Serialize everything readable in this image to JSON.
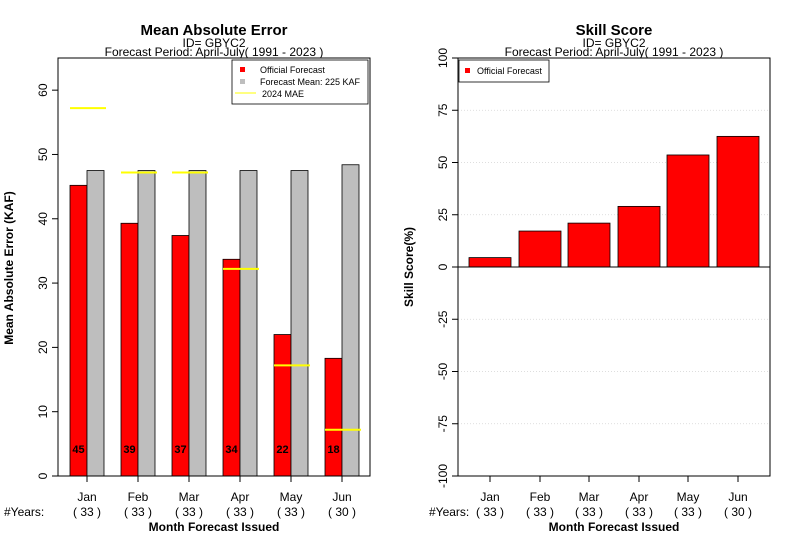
{
  "chart_data": [
    {
      "type": "bar",
      "title": "Mean Absolute Error",
      "subtitle_id": "ID= GBYC2",
      "subtitle_period": "Forecast Period: April-July( 1991 - 2023 )",
      "xlabel": "Month Forecast Issued",
      "ylabel": "Mean Absolute Error (KAF)",
      "ylim": [
        0,
        65
      ],
      "yticks": [
        0,
        10,
        20,
        30,
        40,
        50,
        60
      ],
      "categories": [
        "Jan",
        "Feb",
        "Mar",
        "Apr",
        "May",
        "Jun"
      ],
      "years_label": "#Years:",
      "years": [
        "( 33 )",
        "( 33 )",
        "( 33 )",
        "( 33 )",
        "( 33 )",
        "( 30 )"
      ],
      "series": [
        {
          "name": "Official Forecast",
          "color": "#ff0000",
          "values": [
            45.2,
            39.3,
            37.4,
            33.7,
            22.0,
            18.3
          ]
        },
        {
          "name": "Forecast Mean: 225 KAF",
          "color": "#bebebe",
          "values": [
            47.5,
            47.5,
            47.5,
            47.5,
            47.5,
            48.4
          ]
        }
      ],
      "mae_2024": {
        "name": "2024  MAE",
        "color": "#ffff00",
        "values": [
          57.2,
          47.2,
          47.2,
          32.2,
          17.2,
          7.2
        ]
      },
      "data_labels": [
        "45",
        "39",
        "37",
        "34",
        "22",
        "18"
      ],
      "legend_position": "top-right",
      "grid": false
    },
    {
      "type": "bar",
      "title": "Skill Score",
      "subtitle_id": "ID= GBYC2",
      "subtitle_period": "Forecast Period: April-July( 1991 - 2023 )",
      "xlabel": "Month Forecast Issued",
      "ylabel": "Skill Score(%)",
      "ylim": [
        -100,
        100
      ],
      "yticks": [
        -100,
        -75,
        -50,
        -25,
        0,
        25,
        50,
        75,
        100
      ],
      "categories": [
        "Jan",
        "Feb",
        "Mar",
        "Apr",
        "May",
        "Jun"
      ],
      "years_label": "#Years:",
      "years": [
        "( 33 )",
        "( 33 )",
        "( 33 )",
        "( 33 )",
        "( 33 )",
        "( 30 )"
      ],
      "series": [
        {
          "name": "Official Forecast",
          "color": "#ff0000",
          "values": [
            4.5,
            17.2,
            21.0,
            29.0,
            53.6,
            62.5
          ]
        }
      ],
      "legend_position": "top-left",
      "grid": true
    }
  ]
}
